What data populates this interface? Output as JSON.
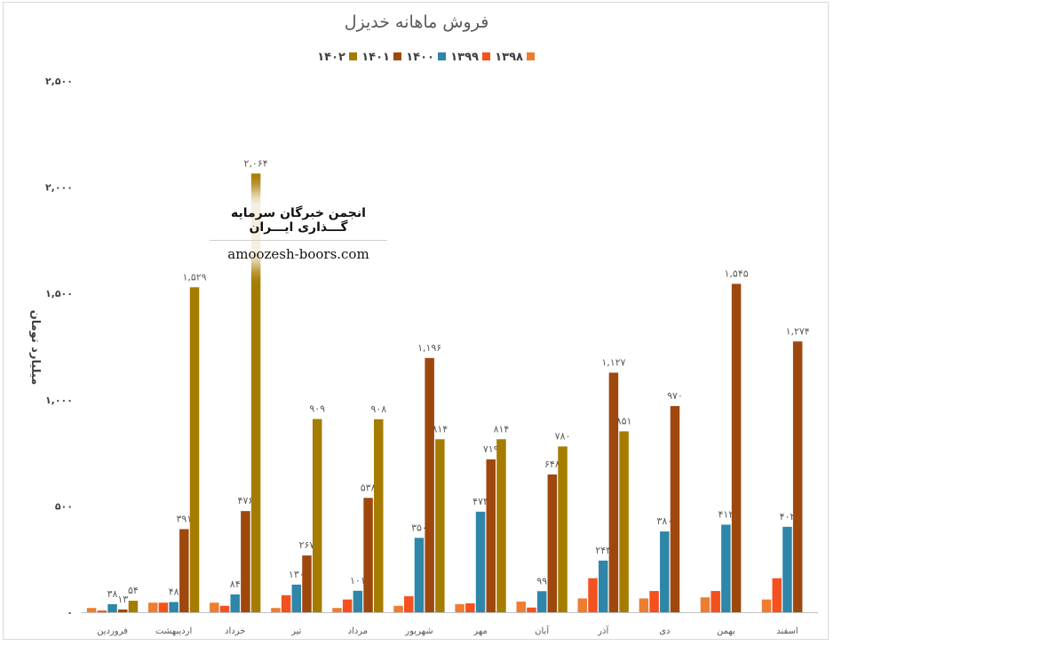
{
  "chart_data": {
    "type": "bar",
    "title": "فروش ماهانه خدیزل",
    "ylabel": "میلیارد تومان",
    "xlabel": "",
    "ylim": [
      0,
      2500
    ],
    "yticks": [
      "۰",
      "۵۰۰",
      "۱,۰۰۰",
      "۱,۵۰۰",
      "۲,۰۰۰",
      "۲,۵۰۰"
    ],
    "grid": false,
    "legend_position": "top",
    "categories": [
      "فروردین",
      "اردیبهشت",
      "خرداد",
      "تیر",
      "مرداد",
      "شهریور",
      "مهر",
      "آبان",
      "آذر",
      "دی",
      "بهمن",
      "اسفند"
    ],
    "series": [
      {
        "name": "۱۳۹۸",
        "color": "#ED7D31",
        "values": [
          20,
          45,
          45,
          20,
          20,
          30,
          38,
          50,
          65,
          65,
          70,
          60
        ],
        "labels": [
          "",
          "",
          "",
          "",
          "",
          "",
          "",
          "",
          "",
          "",
          "",
          ""
        ]
      },
      {
        "name": "۱۳۹۹",
        "color": "#F4511E",
        "values": [
          8,
          45,
          30,
          80,
          60,
          75,
          42,
          22,
          160,
          100,
          100,
          160
        ],
        "labels": [
          "",
          "",
          "",
          "",
          "",
          "",
          "",
          "",
          "",
          "",
          "",
          ""
        ]
      },
      {
        "name": "۱۴۰۰",
        "color": "#2E86A8",
        "values": [
          38,
          48,
          84,
          130,
          101,
          350,
          473,
          99,
          243,
          380,
          412,
          402
        ],
        "labels": [
          "۳۸",
          "۴۸",
          "۸۴",
          "۱۳۰",
          "۱۰۱",
          "۳۵۰",
          "۴۷۳",
          "۹۹",
          "۲۴۳",
          "۳۸۰",
          "۴۱۲",
          "۴۰۲"
        ]
      },
      {
        "name": "۱۴۰۱",
        "color": "#9E480E",
        "values": [
          13,
          391,
          476,
          267,
          538,
          1196,
          719,
          648,
          1127,
          970,
          1545,
          1274
        ],
        "labels": [
          "۱۳",
          "۳۹۱",
          "۴۷۶",
          "۲۶۷",
          "۵۳۸",
          "۱,۱۹۶",
          "۷۱۹",
          "۶۴۸",
          "۱,۱۲۷",
          "۹۷۰",
          "۱,۵۴۵",
          "۱,۲۷۴"
        ]
      },
      {
        "name": "۱۴۰۲",
        "color": "#A67C00",
        "values": [
          54,
          1529,
          2064,
          909,
          908,
          814,
          814,
          780,
          851,
          null,
          null,
          null
        ],
        "labels": [
          "۵۴",
          "۱,۵۲۹",
          "۲,۰۶۴",
          "۹۰۹",
          "۹۰۸",
          "۸۱۴",
          "۸۱۴",
          "۷۸۰",
          "۸۵۱",
          "",
          "",
          ""
        ]
      }
    ]
  },
  "watermark": {
    "line1": "انجمن خبرگان سرمایه گـــذاری ایـــران",
    "line2": "amoozesh-boors.com"
  }
}
